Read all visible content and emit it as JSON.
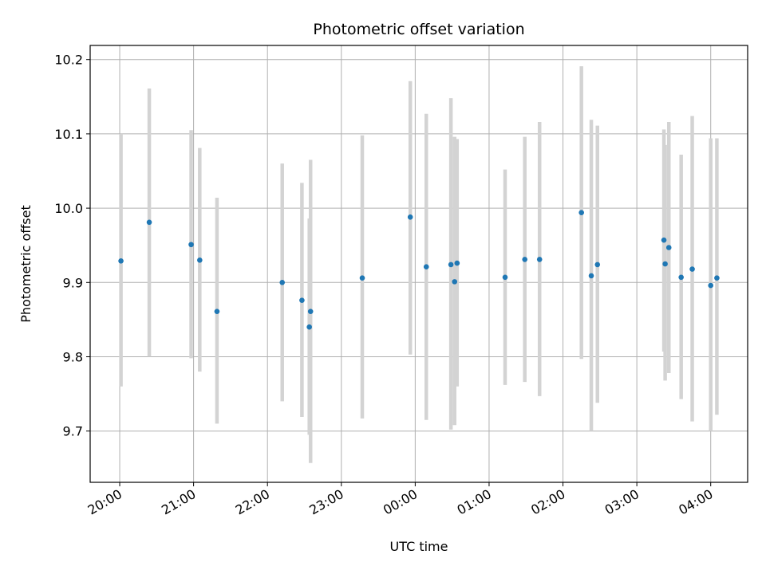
{
  "chart_data": {
    "type": "scatter",
    "title": "Photometric offset variation",
    "xlabel": "UTC time",
    "ylabel": "Photometric offset",
    "x_tick_labels": [
      "20:00",
      "21:00",
      "22:00",
      "23:00",
      "00:00",
      "01:00",
      "02:00",
      "03:00",
      "04:00"
    ],
    "y_tick_labels": [
      "9.7",
      "9.8",
      "9.9",
      "10.0",
      "10.1",
      "10.2"
    ],
    "y_ticks": [
      9.7,
      9.8,
      9.9,
      10.0,
      10.1,
      10.2
    ],
    "xlim": [
      "19:36",
      "04:30"
    ],
    "ylim": [
      9.631,
      10.219
    ],
    "grid": true,
    "colors": {
      "points": "#1f77b4",
      "errorbars": "#d3d3d3",
      "grid": "#b0b0b0"
    },
    "points": [
      {
        "t": "20:01",
        "y": 9.929,
        "lo": 9.76,
        "hi": 10.1
      },
      {
        "t": "20:24",
        "y": 9.981,
        "lo": 9.8,
        "hi": 10.161
      },
      {
        "t": "20:58",
        "y": 9.951,
        "lo": 9.798,
        "hi": 10.105
      },
      {
        "t": "21:05",
        "y": 9.93,
        "lo": 9.78,
        "hi": 10.081
      },
      {
        "t": "21:19",
        "y": 9.861,
        "lo": 9.71,
        "hi": 10.014
      },
      {
        "t": "22:12",
        "y": 9.9,
        "lo": 9.74,
        "hi": 10.06
      },
      {
        "t": "22:28",
        "y": 9.876,
        "lo": 9.719,
        "hi": 10.034
      },
      {
        "t": "22:34",
        "y": 9.84,
        "lo": 9.695,
        "hi": 9.986
      },
      {
        "t": "22:35",
        "y": 9.861,
        "lo": 9.657,
        "hi": 10.065
      },
      {
        "t": "23:17",
        "y": 9.906,
        "lo": 9.717,
        "hi": 10.098
      },
      {
        "t": "23:56",
        "y": 9.988,
        "lo": 9.803,
        "hi": 10.171
      },
      {
        "t": "00:09",
        "y": 9.921,
        "lo": 9.715,
        "hi": 10.127
      },
      {
        "t": "00:29",
        "y": 9.924,
        "lo": 9.702,
        "hi": 10.148
      },
      {
        "t": "00:32",
        "y": 9.901,
        "lo": 9.708,
        "hi": 10.096
      },
      {
        "t": "00:34",
        "y": 9.926,
        "lo": 9.76,
        "hi": 10.093
      },
      {
        "t": "01:13",
        "y": 9.907,
        "lo": 9.762,
        "hi": 10.052
      },
      {
        "t": "01:29",
        "y": 9.931,
        "lo": 9.766,
        "hi": 10.096
      },
      {
        "t": "01:41",
        "y": 9.931,
        "lo": 9.747,
        "hi": 10.116
      },
      {
        "t": "02:15",
        "y": 9.994,
        "lo": 9.797,
        "hi": 10.191
      },
      {
        "t": "02:23",
        "y": 9.909,
        "lo": 9.7,
        "hi": 10.119
      },
      {
        "t": "02:28",
        "y": 9.924,
        "lo": 9.738,
        "hi": 10.111
      },
      {
        "t": "03:22",
        "y": 9.957,
        "lo": 9.807,
        "hi": 10.106
      },
      {
        "t": "03:23",
        "y": 9.925,
        "lo": 9.768,
        "hi": 10.085
      },
      {
        "t": "03:26",
        "y": 9.947,
        "lo": 9.778,
        "hi": 10.116
      },
      {
        "t": "03:36",
        "y": 9.907,
        "lo": 9.743,
        "hi": 10.072
      },
      {
        "t": "03:45",
        "y": 9.918,
        "lo": 9.713,
        "hi": 10.124
      },
      {
        "t": "04:00",
        "y": 9.896,
        "lo": 9.7,
        "hi": 10.094
      },
      {
        "t": "04:05",
        "y": 9.906,
        "lo": 9.722,
        "hi": 10.094
      }
    ]
  }
}
